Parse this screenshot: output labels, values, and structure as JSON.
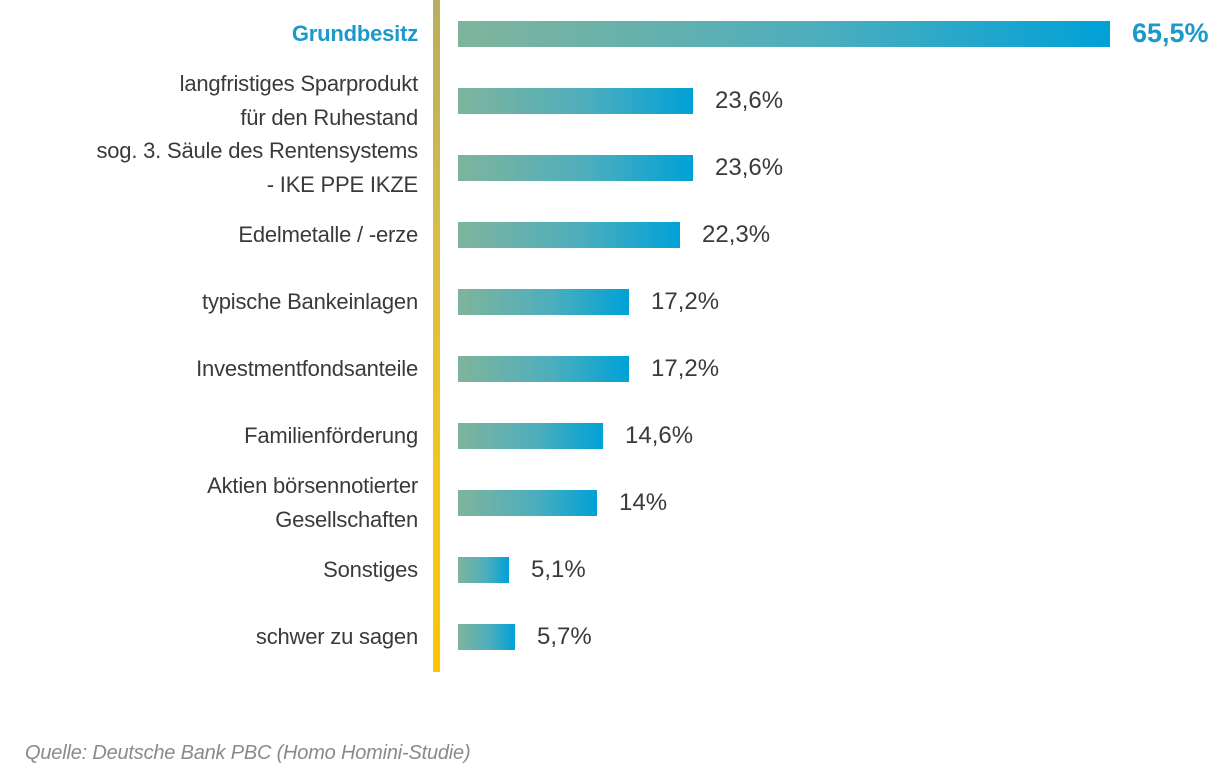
{
  "chart_data": {
    "type": "bar",
    "orientation": "horizontal",
    "title": "",
    "xlabel": "",
    "ylabel": "",
    "grid": false,
    "legend": false,
    "xlim": [
      0,
      65.5
    ],
    "categories": [
      "Grundbesitz",
      "langfristiges Sparprodukt\nfür den Ruhestand",
      "sog. 3. Säule des Rentensystems\n- IKE PPE IKZE",
      "Edelmetalle / -erze",
      "typische Bankeinlagen",
      "Investmentfondsanteile",
      "Familienförderung",
      "Aktien börsennotierter\nGesellschaften",
      "Sonstiges",
      "schwer zu sagen"
    ],
    "values": [
      65.5,
      23.6,
      23.6,
      22.3,
      17.2,
      17.2,
      14.6,
      14,
      5.1,
      5.7
    ],
    "value_labels": [
      "65,5%",
      "23,6%",
      "23,6%",
      "22,3%",
      "17,2%",
      "17,2%",
      "14,6%",
      "14%",
      "5,1%",
      "5,7%"
    ],
    "highlight_index": 0
  },
  "source": "Quelle: Deutsche Bank PBC (Homo Homini-Studie)",
  "colors": {
    "bar_gradient_start": "#7fb49c",
    "bar_gradient_end": "#00a1d7",
    "axis_top": "#b6ae61",
    "axis_bottom": "#fdc500",
    "highlight": "#1c98cb",
    "label_text": "#3a3a3a",
    "value_text": "#3a3a3a",
    "source_text": "#8a8a8a"
  }
}
